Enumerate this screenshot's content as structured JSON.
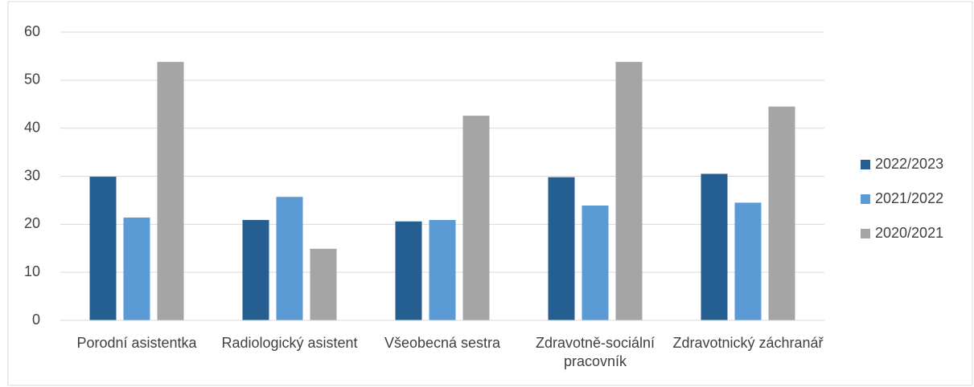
{
  "chart_data": {
    "type": "bar",
    "categories": [
      "Porodní asistentka",
      "Radiologický asistent",
      "Všeobecná sestra",
      "Zdravotně-sociální pracovník",
      "Zdravotnický záchranář"
    ],
    "series": [
      {
        "name": "2022/2023",
        "color": "#255e91",
        "values": [
          29.9,
          20.9,
          20.6,
          29.8,
          30.5
        ]
      },
      {
        "name": "2021/2022",
        "color": "#5b9bd5",
        "values": [
          21.4,
          25.7,
          20.9,
          23.9,
          24.5
        ]
      },
      {
        "name": "2020/2021",
        "color": "#a5a5a5",
        "values": [
          53.8,
          14.9,
          42.6,
          53.8,
          44.5
        ]
      }
    ],
    "ylim": [
      0,
      60
    ],
    "yticks": [
      0,
      10,
      20,
      30,
      40,
      50,
      60
    ],
    "grid": true,
    "legend": "right"
  }
}
